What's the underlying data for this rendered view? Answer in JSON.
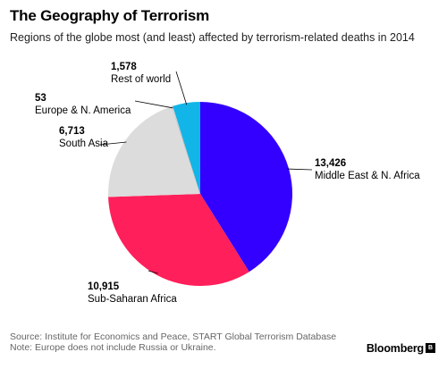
{
  "header": {
    "title": "The Geography of Terrorism",
    "subtitle": "Regions of the globe most (and least) affected by terrorism-related deaths in 2014"
  },
  "chart_data": {
    "type": "pie",
    "title": "The Geography of Terrorism",
    "subtitle": "Regions of the globe most (and least) affected by terrorism-related deaths in 2014",
    "slices": [
      {
        "label": "Middle East & N. Africa",
        "value": 13426,
        "value_label": "13,426",
        "color": "#3300ff"
      },
      {
        "label": "Sub-Saharan Africa",
        "value": 10915,
        "value_label": "10,915",
        "color": "#ff1f5a"
      },
      {
        "label": "South Asia",
        "value": 6713,
        "value_label": "6,713",
        "color": "#dcdcdc"
      },
      {
        "label": "Europe & N. America",
        "value": 53,
        "value_label": "53",
        "color": "#ffffff"
      },
      {
        "label": "Rest of world",
        "value": 1578,
        "value_label": "1,578",
        "color": "#11b5e8"
      }
    ],
    "start": "12 o'clock",
    "direction": "clockwise"
  },
  "footer": {
    "source": "Source: Institute for Economics and Peace, START Global Terrorism Database",
    "note": "Note: Europe does not include Russia or Ukraine.",
    "brand": "Bloomberg",
    "brand_badge": "B"
  }
}
